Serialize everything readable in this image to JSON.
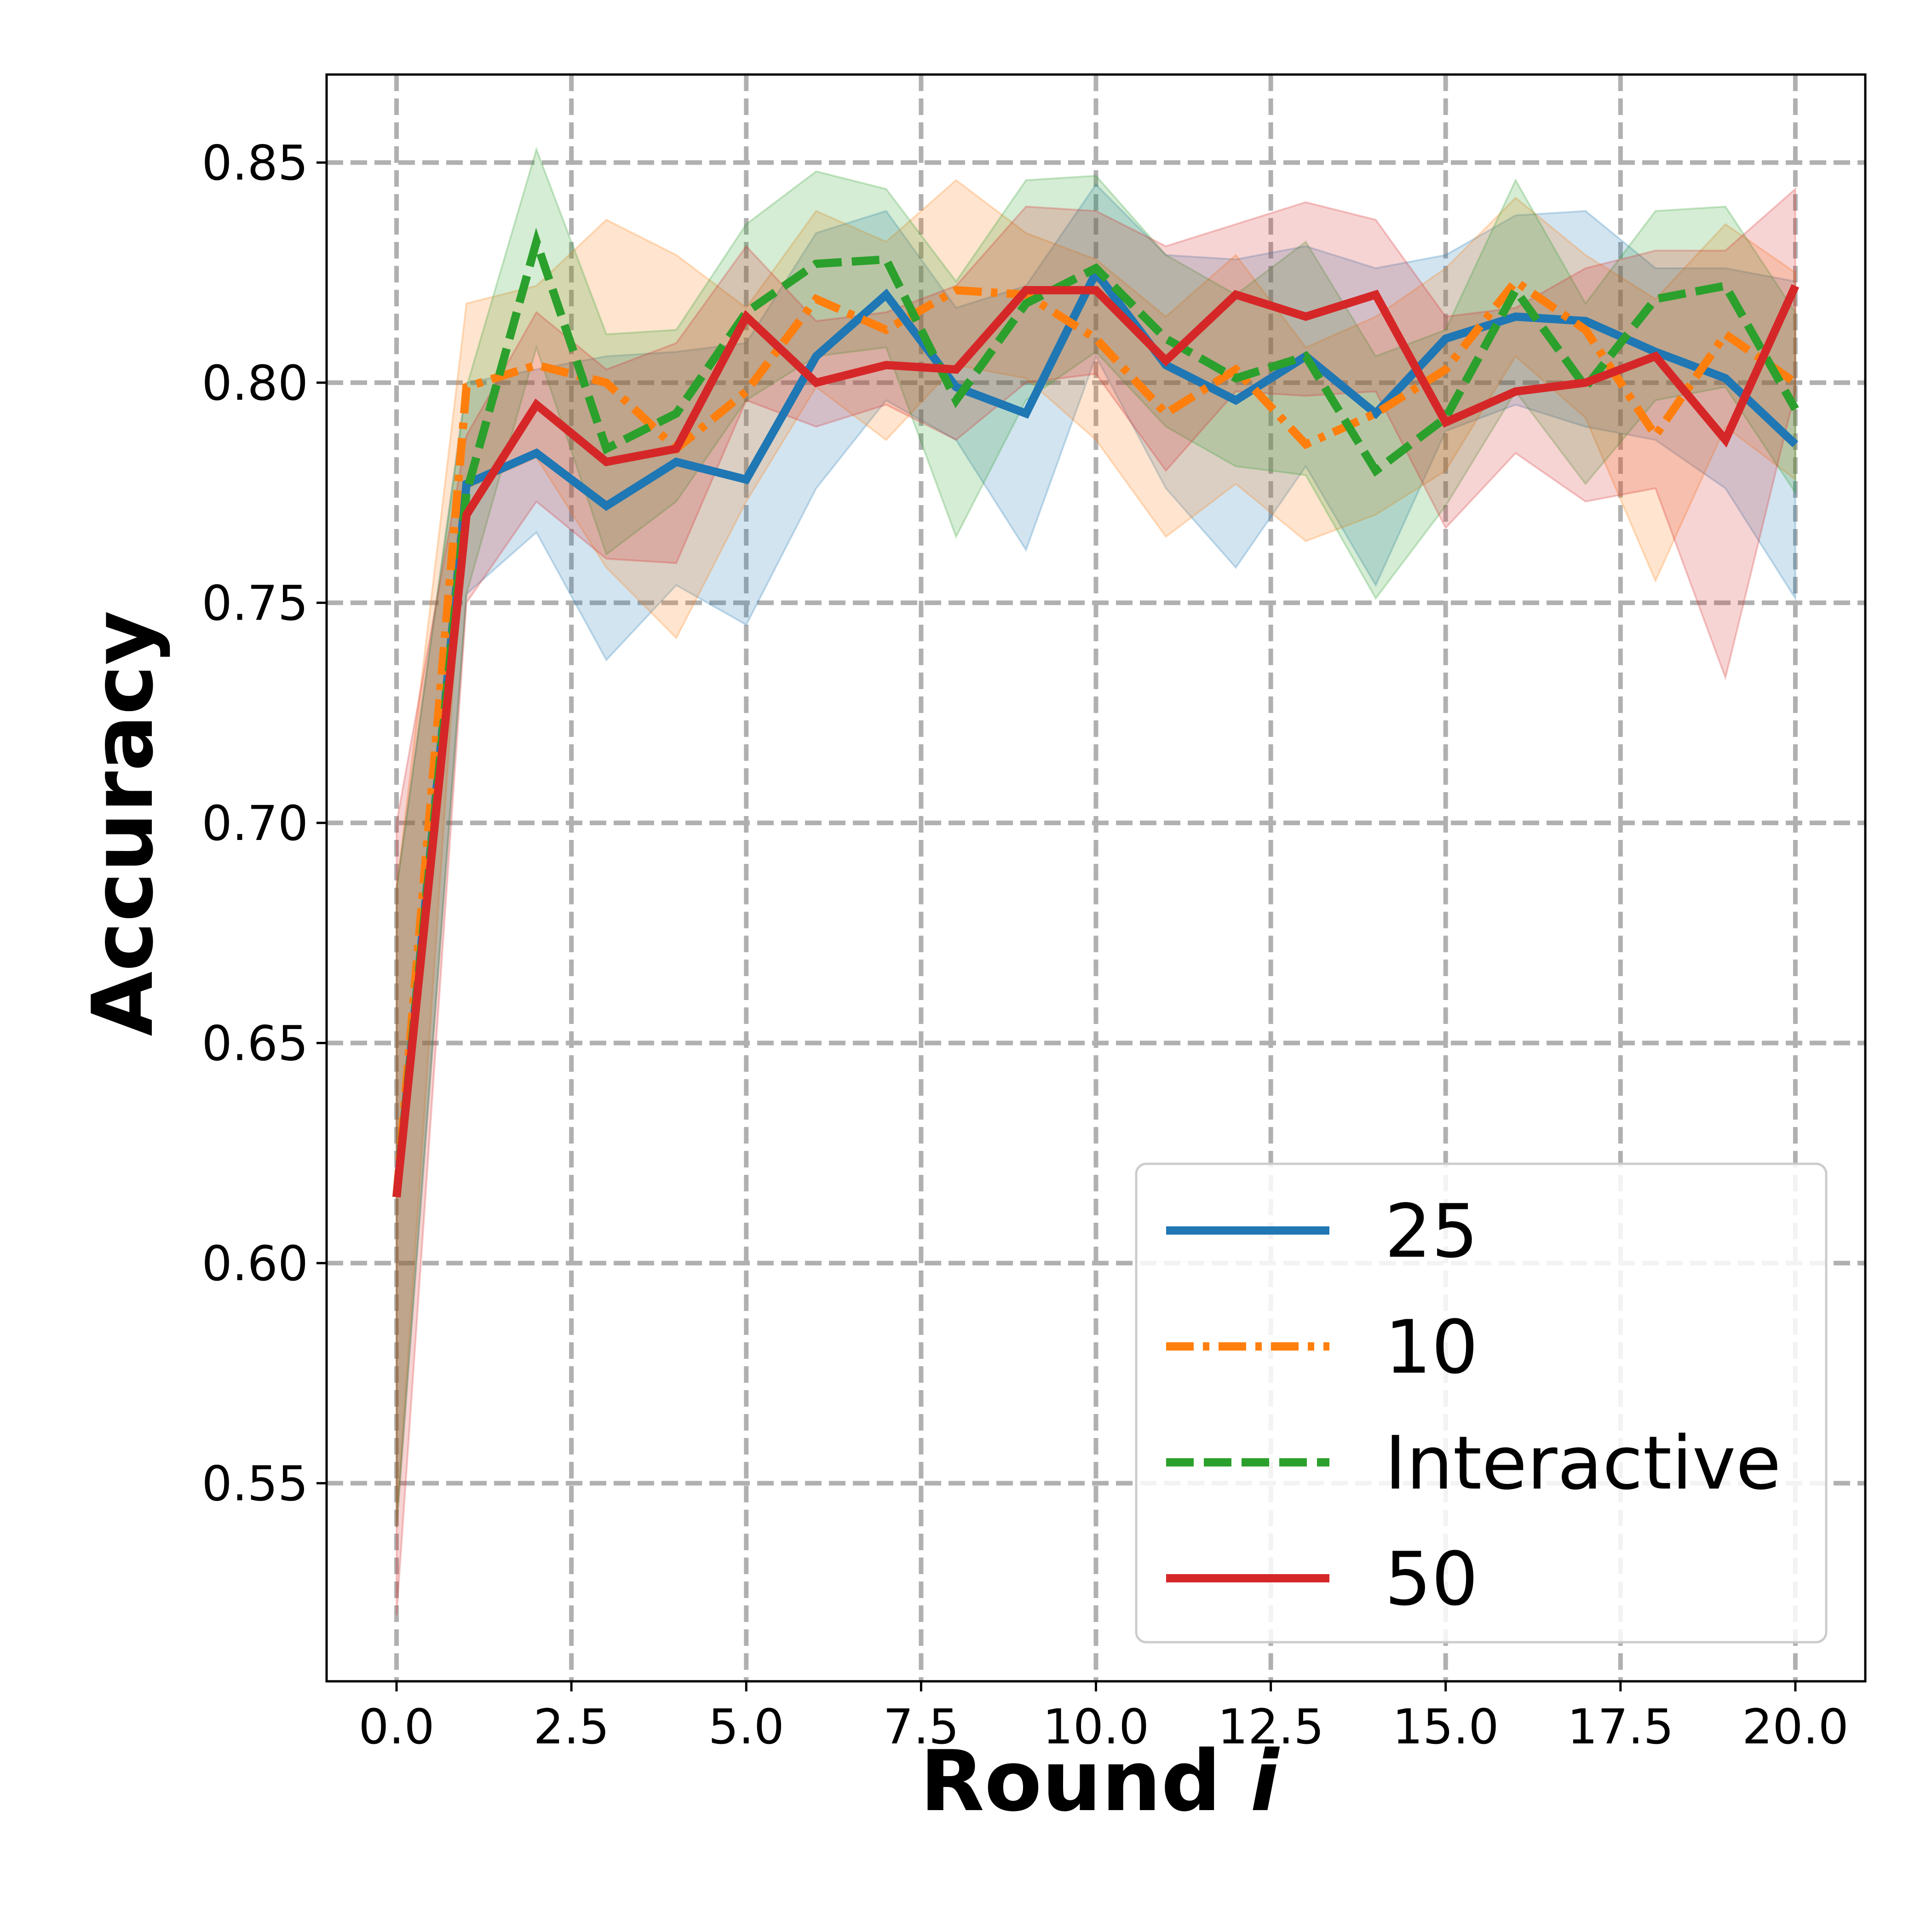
{
  "chart_data": {
    "type": "line",
    "xlabel": "Round",
    "xlabel_var": "i",
    "ylabel": "Accuracy",
    "xlim": [
      -1.0,
      21.0
    ],
    "ylim": [
      0.505,
      0.87
    ],
    "xticks": [
      0.0,
      2.5,
      5.0,
      7.5,
      10.0,
      12.5,
      15.0,
      17.5,
      20.0
    ],
    "xtick_labels": [
      "0.0",
      "2.5",
      "5.0",
      "7.5",
      "10.0",
      "12.5",
      "15.0",
      "17.5",
      "20.0"
    ],
    "yticks": [
      0.55,
      0.6,
      0.65,
      0.7,
      0.75,
      0.8,
      0.85
    ],
    "ytick_labels": [
      "0.55",
      "0.60",
      "0.65",
      "0.70",
      "0.75",
      "0.80",
      "0.85"
    ],
    "grid": true,
    "legend_position": "lower-right",
    "x": [
      0,
      1,
      2,
      3,
      4,
      5,
      6,
      7,
      8,
      9,
      10,
      11,
      12,
      13,
      14,
      15,
      16,
      17,
      18,
      19,
      20
    ],
    "series": [
      {
        "name": "25",
        "color": "#1f77b4",
        "linestyle": "solid",
        "values": [
          0.615,
          0.777,
          0.784,
          0.772,
          0.782,
          0.778,
          0.806,
          0.82,
          0.799,
          0.793,
          0.825,
          0.804,
          0.796,
          0.806,
          0.793,
          0.81,
          0.815,
          0.814,
          0.807,
          0.801,
          0.786
        ],
        "lower": [
          0.54,
          0.752,
          0.766,
          0.737,
          0.754,
          0.745,
          0.776,
          0.796,
          0.787,
          0.762,
          0.806,
          0.776,
          0.758,
          0.781,
          0.754,
          0.789,
          0.795,
          0.79,
          0.787,
          0.776,
          0.751
        ],
        "upper": [
          0.685,
          0.8,
          0.803,
          0.806,
          0.807,
          0.809,
          0.834,
          0.839,
          0.817,
          0.822,
          0.845,
          0.829,
          0.828,
          0.831,
          0.826,
          0.829,
          0.838,
          0.839,
          0.826,
          0.826,
          0.823
        ]
      },
      {
        "name": "10",
        "color": "#ff7f0e",
        "linestyle": "dashdot",
        "values": [
          0.615,
          0.799,
          0.804,
          0.8,
          0.785,
          0.798,
          0.819,
          0.812,
          0.821,
          0.82,
          0.81,
          0.793,
          0.803,
          0.786,
          0.793,
          0.803,
          0.823,
          0.812,
          0.788,
          0.811,
          0.8
        ],
        "lower": [
          0.54,
          0.776,
          0.783,
          0.758,
          0.742,
          0.773,
          0.799,
          0.787,
          0.804,
          0.801,
          0.787,
          0.765,
          0.777,
          0.764,
          0.77,
          0.78,
          0.806,
          0.792,
          0.755,
          0.79,
          0.778
        ],
        "upper": [
          0.685,
          0.818,
          0.822,
          0.837,
          0.829,
          0.817,
          0.839,
          0.832,
          0.846,
          0.834,
          0.828,
          0.815,
          0.829,
          0.808,
          0.815,
          0.826,
          0.842,
          0.829,
          0.819,
          0.836,
          0.825
        ]
      },
      {
        "name": "Interactive",
        "color": "#2ca02c",
        "linestyle": "dashed",
        "values": [
          0.615,
          0.775,
          0.832,
          0.785,
          0.793,
          0.816,
          0.827,
          0.828,
          0.796,
          0.818,
          0.826,
          0.81,
          0.801,
          0.806,
          0.78,
          0.792,
          0.821,
          0.799,
          0.819,
          0.822,
          0.794
        ],
        "lower": [
          0.54,
          0.752,
          0.808,
          0.761,
          0.773,
          0.796,
          0.806,
          0.808,
          0.765,
          0.796,
          0.807,
          0.79,
          0.781,
          0.779,
          0.751,
          0.772,
          0.798,
          0.777,
          0.796,
          0.799,
          0.775
        ],
        "upper": [
          0.685,
          0.799,
          0.853,
          0.811,
          0.812,
          0.836,
          0.848,
          0.844,
          0.823,
          0.846,
          0.847,
          0.829,
          0.82,
          0.832,
          0.806,
          0.812,
          0.846,
          0.818,
          0.839,
          0.84,
          0.816
        ]
      },
      {
        "name": "50",
        "color": "#d62728",
        "linestyle": "solid",
        "values": [
          0.615,
          0.77,
          0.795,
          0.782,
          0.785,
          0.815,
          0.8,
          0.804,
          0.803,
          0.821,
          0.821,
          0.805,
          0.82,
          0.815,
          0.82,
          0.791,
          0.798,
          0.8,
          0.806,
          0.787,
          0.822
        ],
        "lower": [
          0.52,
          0.75,
          0.773,
          0.76,
          0.759,
          0.796,
          0.79,
          0.795,
          0.787,
          0.8,
          0.802,
          0.78,
          0.798,
          0.797,
          0.798,
          0.767,
          0.784,
          0.773,
          0.776,
          0.733,
          0.798
        ],
        "upper": [
          0.7,
          0.788,
          0.816,
          0.803,
          0.809,
          0.831,
          0.814,
          0.816,
          0.822,
          0.84,
          0.839,
          0.831,
          0.836,
          0.841,
          0.837,
          0.815,
          0.817,
          0.826,
          0.83,
          0.83,
          0.844
        ]
      }
    ]
  }
}
